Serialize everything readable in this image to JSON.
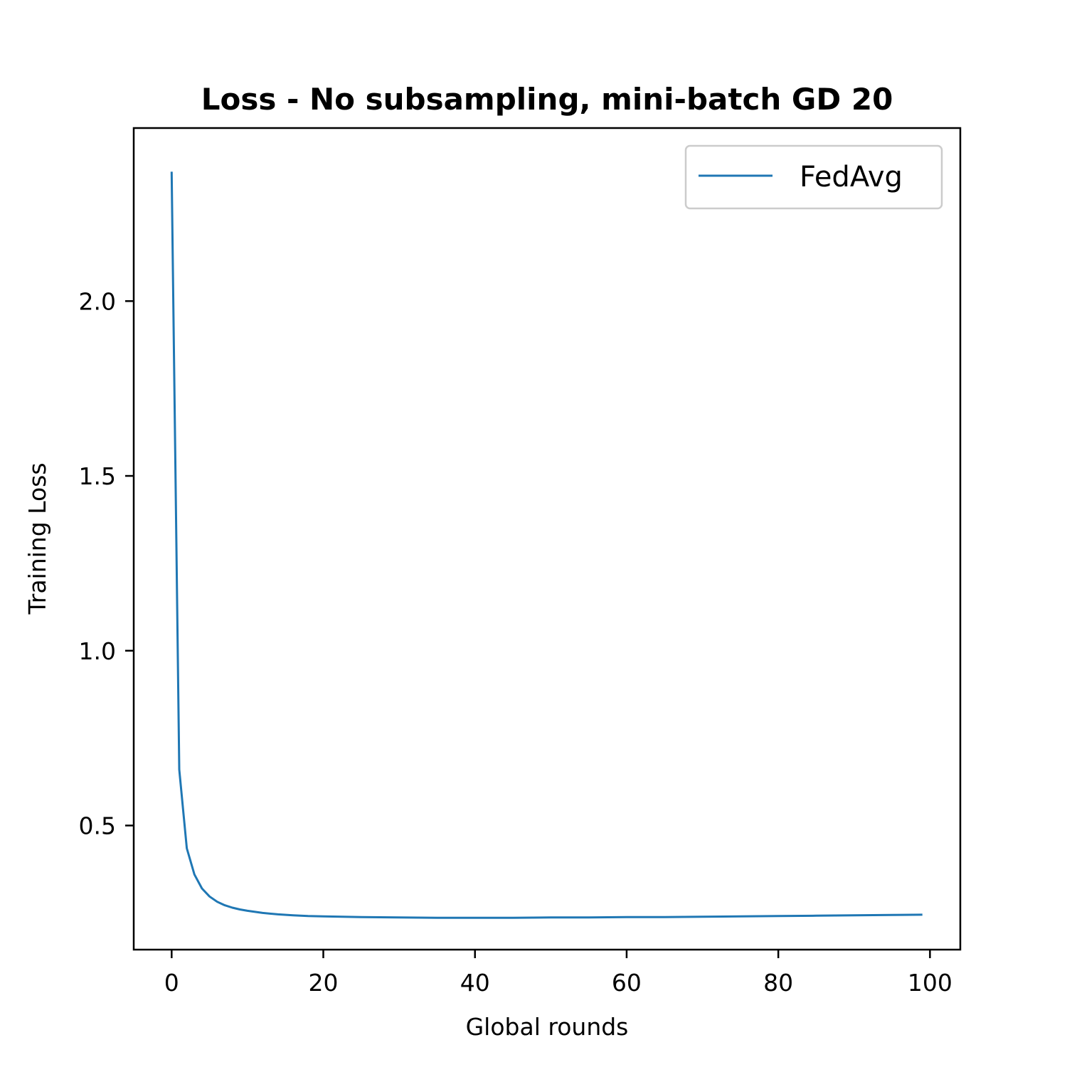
{
  "chart_data": {
    "type": "line",
    "title": "Loss - No subsampling, mini-batch GD 20",
    "xlabel": "Global rounds",
    "ylabel": "Training Loss",
    "xlim": [
      -5,
      104
    ],
    "ylim": [
      0.145,
      2.495
    ],
    "xticks": [
      0,
      20,
      40,
      60,
      80,
      100
    ],
    "xtick_labels": [
      "0",
      "20",
      "40",
      "60",
      "80",
      "100"
    ],
    "yticks": [
      0.5,
      1.0,
      1.5,
      2.0
    ],
    "ytick_labels": [
      "0.5",
      "1.0",
      "1.5",
      "2.0"
    ],
    "legend_position": "top-right",
    "grid": false,
    "series": [
      {
        "name": "FedAvg",
        "color": "#1f77b4",
        "x": [
          0,
          1,
          2,
          3,
          4,
          5,
          6,
          7,
          8,
          9,
          10,
          12,
          14,
          16,
          18,
          20,
          25,
          30,
          35,
          40,
          45,
          50,
          55,
          60,
          65,
          70,
          75,
          80,
          85,
          90,
          95,
          99
        ],
        "y": [
          2.37,
          0.66,
          0.435,
          0.36,
          0.32,
          0.297,
          0.282,
          0.272,
          0.265,
          0.26,
          0.256,
          0.25,
          0.246,
          0.243,
          0.241,
          0.24,
          0.238,
          0.237,
          0.236,
          0.236,
          0.236,
          0.237,
          0.237,
          0.238,
          0.238,
          0.239,
          0.24,
          0.241,
          0.242,
          0.243,
          0.244,
          0.245
        ]
      }
    ]
  }
}
